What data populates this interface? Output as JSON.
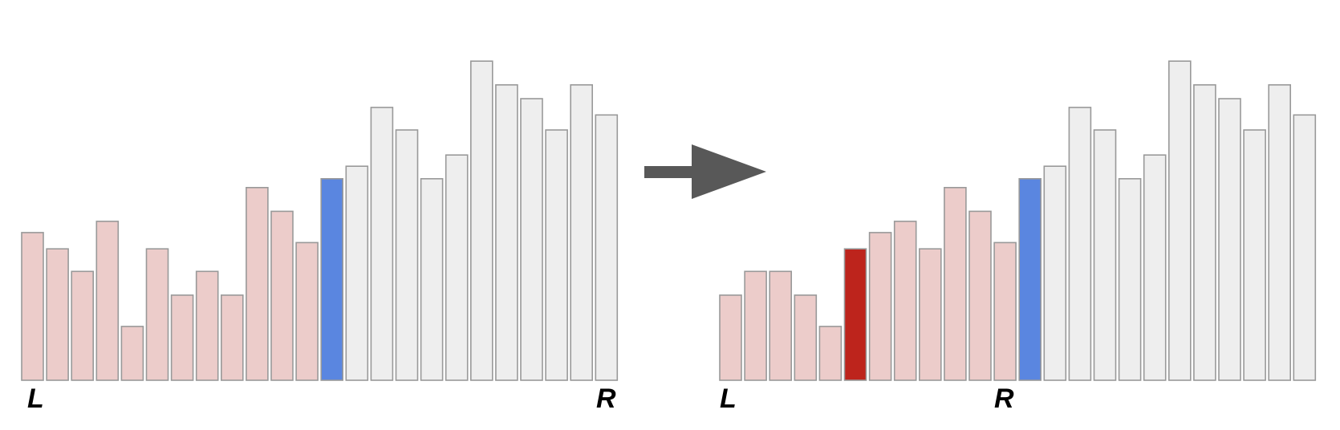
{
  "colors": {
    "processed": "#ecccca",
    "pivot": "#5a86e0",
    "unprocessed": "#eeeeee",
    "highlight": "#bd241c",
    "arrow": "#585858"
  },
  "before": {
    "values": [
      5.9,
      5.25,
      4.35,
      6.35,
      2.15,
      5.25,
      3.4,
      4.35,
      3.4,
      7.7,
      6.75,
      5.5,
      8.05,
      8.55,
      10.9,
      10.0,
      8.05,
      9.0,
      12.75,
      11.8,
      11.25,
      10.0,
      11.8,
      10.6
    ],
    "states": [
      "processed",
      "processed",
      "processed",
      "processed",
      "processed",
      "processed",
      "processed",
      "processed",
      "processed",
      "processed",
      "processed",
      "processed",
      "pivot",
      "unprocessed",
      "unprocessed",
      "unprocessed",
      "unprocessed",
      "unprocessed",
      "unprocessed",
      "unprocessed",
      "unprocessed",
      "unprocessed",
      "unprocessed",
      "unprocessed"
    ],
    "left_label": "L",
    "right_label": "R"
  },
  "after": {
    "values": [
      3.4,
      4.35,
      4.35,
      3.4,
      2.15,
      5.25,
      5.9,
      6.35,
      5.25,
      7.7,
      6.75,
      5.5,
      8.05,
      8.55,
      10.9,
      10.0,
      8.05,
      9.0,
      12.75,
      11.8,
      11.25,
      10.0,
      11.8,
      10.6
    ],
    "states": [
      "processed",
      "processed",
      "processed",
      "processed",
      "processed",
      "highlight",
      "processed",
      "processed",
      "processed",
      "processed",
      "processed",
      "processed",
      "pivot",
      "unprocessed",
      "unprocessed",
      "unprocessed",
      "unprocessed",
      "unprocessed",
      "unprocessed",
      "unprocessed",
      "unprocessed",
      "unprocessed",
      "unprocessed",
      "unprocessed"
    ],
    "left_label": "L",
    "right_label": "R"
  }
}
